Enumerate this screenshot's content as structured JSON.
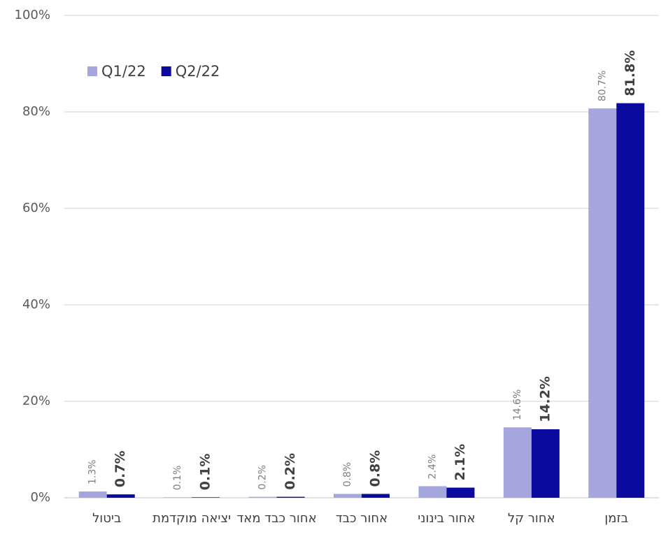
{
  "chart_data": {
    "type": "bar",
    "categories": [
      "ביטול",
      "יציאה מוקדמת",
      "אחור כבד מאד",
      "אחור כבד",
      "אחור בינוני",
      "אחור קל",
      "בזמן"
    ],
    "series": [
      {
        "name": "Q1/22",
        "color": "#a6a6de",
        "values": [
          1.3,
          0.1,
          0.2,
          0.8,
          2.4,
          14.6,
          80.7
        ],
        "value_labels": [
          "1.3%",
          "0.1%",
          "0.2%",
          "0.8%",
          "2.4%",
          "14.6%",
          "80.7%"
        ]
      },
      {
        "name": "Q2/22",
        "color": "#0a0a9e",
        "values": [
          0.7,
          0.1,
          0.2,
          0.8,
          2.1,
          14.2,
          81.8
        ],
        "value_labels": [
          "0.7%",
          "0.1%",
          "0.2%",
          "0.8%",
          "2.1%",
          "14.2%",
          "81.8%"
        ]
      }
    ],
    "ylim": [
      0,
      100
    ],
    "yticks": [
      {
        "value": 0,
        "label": "0%"
      },
      {
        "value": 20,
        "label": "20%"
      },
      {
        "value": 40,
        "label": "40%"
      },
      {
        "value": 60,
        "label": "60%"
      },
      {
        "value": 80,
        "label": "80%"
      },
      {
        "value": 100,
        "label": "100%"
      }
    ],
    "grid": true,
    "legend": "top-left"
  }
}
